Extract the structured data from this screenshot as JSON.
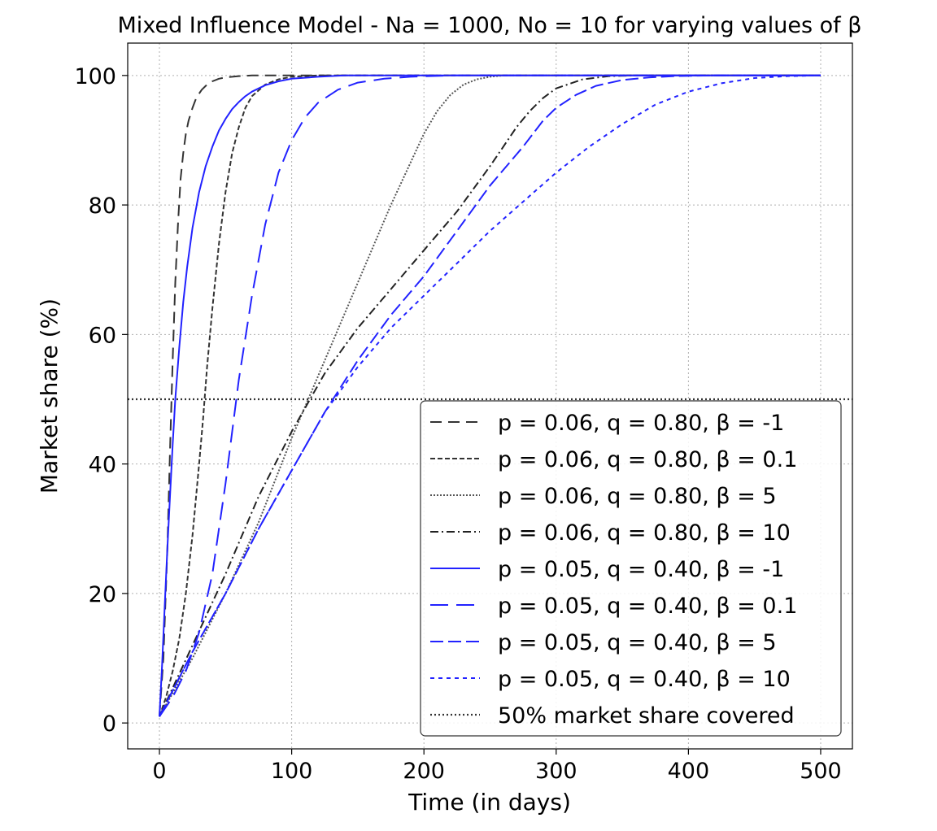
{
  "chart_data": {
    "type": "line",
    "title": "Mixed Influence Model - Na = 1000, No = 10 for varying values of β",
    "xlabel": "Time (in days)",
    "ylabel": "Market share (%)",
    "xlim": [
      -24,
      524
    ],
    "ylim": [
      -4,
      105
    ],
    "xticks": [
      0,
      100,
      200,
      300,
      400,
      500
    ],
    "yticks": [
      0,
      20,
      40,
      60,
      80,
      100
    ],
    "grid": true,
    "legend_position": "lower-right",
    "series": [
      {
        "name": "p = 0.06, q = 0.80, β = -1",
        "color": "#333333",
        "dash": "14 8",
        "x": [
          0,
          3,
          6,
          8,
          10,
          12,
          14,
          16,
          18,
          20,
          22,
          25,
          28,
          32,
          36,
          40,
          45,
          50,
          60,
          70,
          80,
          100,
          500
        ],
        "y": [
          1,
          10,
          27,
          42,
          56,
          68,
          77,
          84,
          88,
          91,
          93,
          95,
          96.6,
          97.8,
          98.6,
          99.1,
          99.5,
          99.7,
          99.9,
          100,
          100,
          100,
          100
        ]
      },
      {
        "name": "p = 0.06, q = 0.80, β = 0.1",
        "color": "#333333",
        "dash": "6 3",
        "x": [
          0,
          5,
          10,
          15,
          20,
          25,
          30,
          33,
          36,
          40,
          45,
          50,
          55,
          60,
          65,
          70,
          80,
          90,
          100,
          120,
          150,
          500
        ],
        "y": [
          1,
          4,
          8,
          13,
          20,
          29,
          40,
          47,
          55,
          64,
          74,
          82,
          88,
          92,
          95,
          96.8,
          98.6,
          99.4,
          99.8,
          100,
          100,
          100
        ]
      },
      {
        "name": "p = 0.06, q = 0.80, β = 5",
        "color": "#555555",
        "dash": "2 2",
        "x": [
          0,
          25,
          50,
          75,
          100,
          125,
          150,
          175,
          200,
          210,
          220,
          230,
          240,
          250,
          260,
          270,
          500
        ],
        "y": [
          1,
          10,
          20,
          31,
          44,
          56,
          68,
          80,
          91,
          94.5,
          97,
          98.6,
          99.4,
          99.8,
          100,
          100,
          100
        ]
      },
      {
        "name": "p = 0.06, q = 0.80, β = 10",
        "color": "#222222",
        "dash": "10 4 2 4",
        "x": [
          0,
          25,
          50,
          75,
          100,
          125,
          150,
          175,
          200,
          225,
          250,
          260,
          270,
          280,
          290,
          300,
          320,
          340,
          360,
          500
        ],
        "y": [
          1,
          12,
          23,
          35,
          45,
          54,
          61,
          67,
          73,
          79,
          86,
          89,
          92,
          94.5,
          96.5,
          98,
          99.4,
          99.9,
          100,
          100
        ]
      },
      {
        "name": "p = 0.05, q = 0.40, β = -1",
        "color": "#2222ff",
        "dash": "",
        "x": [
          0,
          2,
          4,
          6,
          8,
          10,
          12,
          15,
          18,
          21,
          25,
          30,
          35,
          40,
          45,
          50,
          55,
          60,
          65,
          70,
          80,
          90,
          100,
          120,
          140,
          170,
          500
        ],
        "y": [
          1,
          9,
          18,
          27,
          35,
          43,
          50,
          58,
          65,
          70.5,
          76.5,
          82,
          86,
          89,
          91.5,
          93.3,
          94.8,
          95.9,
          96.8,
          97.5,
          98.5,
          99.1,
          99.5,
          99.8,
          100,
          100,
          100
        ]
      },
      {
        "name": "p = 0.05, q = 0.40, β = 0.1",
        "color": "#2222ff",
        "dash": "22 10",
        "x": [
          0,
          10,
          20,
          30,
          40,
          50,
          60,
          70,
          80,
          90,
          100,
          110,
          120,
          135,
          150,
          170,
          190,
          220,
          500
        ],
        "y": [
          1,
          4,
          8,
          14,
          23,
          37,
          53,
          66,
          77,
          85,
          90,
          93.5,
          95.8,
          97.8,
          98.9,
          99.5,
          99.8,
          100,
          100
        ]
      },
      {
        "name": "p = 0.05, q = 0.40, β = 5",
        "color": "#2222ff",
        "dash": "16 6",
        "x": [
          0,
          25,
          50,
          75,
          100,
          125,
          150,
          175,
          200,
          225,
          250,
          275,
          290,
          300,
          315,
          330,
          350,
          370,
          390,
          420,
          500
        ],
        "y": [
          1,
          11,
          20,
          30,
          39,
          48,
          56,
          63,
          69,
          76,
          83,
          89,
          93,
          95,
          97,
          98.4,
          99.3,
          99.7,
          99.9,
          100,
          100
        ]
      },
      {
        "name": "p = 0.05, q = 0.40, β = 10",
        "color": "#2222ff",
        "dash": "5 5",
        "x": [
          0,
          25,
          50,
          75,
          100,
          125,
          150,
          175,
          200,
          225,
          250,
          275,
          300,
          325,
          350,
          375,
          400,
          425,
          450,
          475,
          500
        ],
        "y": [
          1,
          11,
          20,
          30,
          39,
          48,
          55,
          61,
          66,
          71,
          76,
          80.5,
          85,
          89,
          92.5,
          95.5,
          97.5,
          98.8,
          99.6,
          99.9,
          100
        ]
      },
      {
        "name": "50% market share covered",
        "color": "#333333",
        "dash": "2 3",
        "horizontal": 50
      }
    ]
  }
}
